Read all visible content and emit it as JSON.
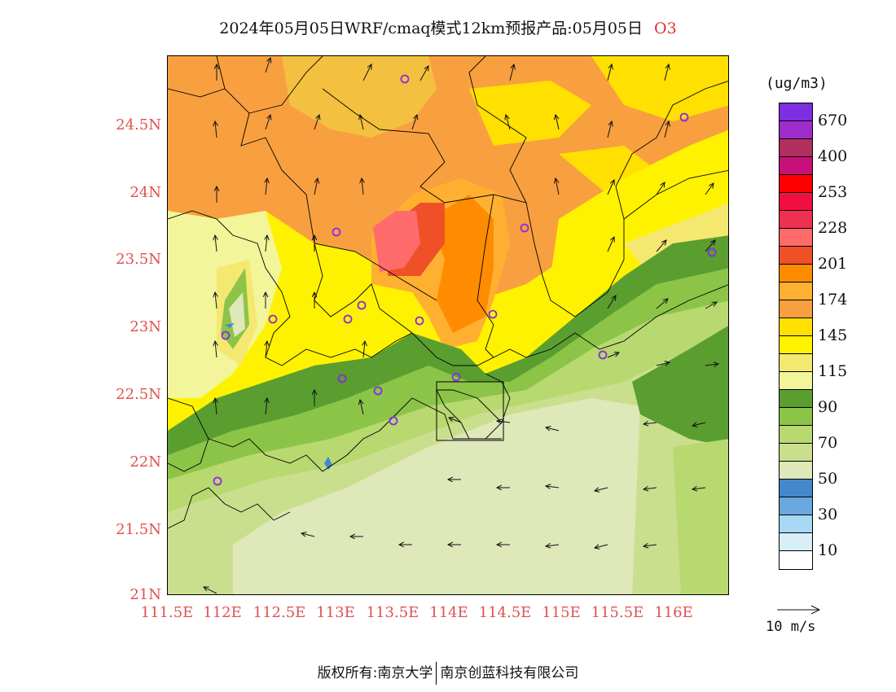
{
  "title": {
    "main": "2024年05月05日WRF/cmaq模式12km预报产品:05月05日",
    "species": "O3"
  },
  "unit": "(ug/m3)",
  "legend": {
    "swatches": [
      "#7c2ee0",
      "#9d2ccc",
      "#b03060",
      "#c8107a",
      "#ff0000",
      "#f01040",
      "#f03050",
      "#ff6a6a",
      "#f05028",
      "#ff8c00",
      "#ffb030",
      "#f8a040",
      "#ffe000",
      "#fff200",
      "#f4e870",
      "#f2f59a",
      "#5a9e30",
      "#8cc448",
      "#b8d870",
      "#cadf8e",
      "#dee8b8",
      "#4488cc",
      "#6aa8e0",
      "#a8d8f4",
      "#d8eef8",
      "#ffffff"
    ],
    "labels": [
      "670",
      "400",
      "253",
      "228",
      "201",
      "174",
      "145",
      "115",
      "90",
      "70",
      "50",
      "30",
      "10"
    ]
  },
  "lat_labels": [
    "24.5N",
    "24N",
    "23.5N",
    "23N",
    "22.5N",
    "22N",
    "21.5N",
    "21N"
  ],
  "lon_labels": [
    "111.5E",
    "112E",
    "112.5E",
    "113E",
    "113.5E",
    "114E",
    "114.5E",
    "115E",
    "115.5E",
    "116E"
  ],
  "wind_ref": "10 m/s",
  "footer": {
    "left": "版权所有:南京大学",
    "right": "南京创蓝科技有限公司"
  },
  "colors": {
    "axis_label": "#e05050",
    "station_marker": "#8a2be2"
  }
}
